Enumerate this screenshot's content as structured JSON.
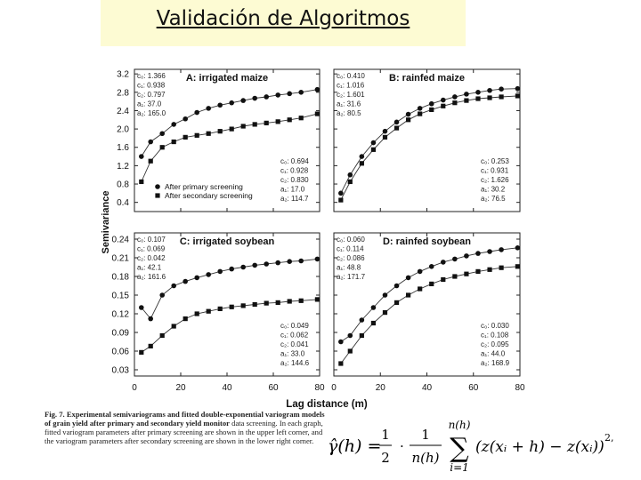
{
  "slide": {
    "title": "Validación de Algoritmos"
  },
  "figure": {
    "x_axis_label": "Lag distance (m)",
    "y_axis_label": "Semivariance",
    "caption_bold": "Fig. 7. Experimental semivariograms and fitted double-exponential variogram models of grain yield after primary and secondary yield monitor",
    "caption_rest": "data screening. In each graph, fitted variogram parameters after primary screening are shown in the upper left corner, and the variogram parameters after secondary screening are shown in the lower right corner."
  },
  "formula": {
    "lhs": "γ̂(h) =",
    "half_num": "1",
    "half_den": "2",
    "n_num": "1",
    "n_den": "n(h)",
    "sum_top": "n(h)",
    "sum_bottom": "i=1",
    "sum_symbol": "∑",
    "body": "(z(xᵢ + h) − z(xᵢ))",
    "power": "2,"
  },
  "chart_data": [
    {
      "id": "A",
      "type": "scatter",
      "title": "A: irrigated maize",
      "xlim": [
        0,
        80
      ],
      "ylim": [
        0.2,
        3.3
      ],
      "xticks": [
        "0",
        "20",
        "40",
        "60",
        "80"
      ],
      "yticks": [
        "0.4",
        "0.8",
        "1.2",
        "1.6",
        "2.0",
        "2.4",
        "2.8",
        "3.2"
      ],
      "params_upper": [
        "c₀: 1.366",
        "c₁: 0.938",
        "c₂: 0.797",
        "a₁: 37.0",
        "a₂: 165.0"
      ],
      "params_lower": [
        "c₀: 0.694",
        "c₁: 0.928",
        "c₂: 0.830",
        "a₁: 17.0",
        "a₂: 114.7"
      ],
      "legend": [
        "After primary screening",
        "After secondary screening"
      ],
      "series": [
        {
          "name": "After primary screening",
          "marker": "circle",
          "x": [
            3,
            7,
            12,
            17,
            22,
            27,
            32,
            37,
            42,
            47,
            52,
            57,
            62,
            67,
            72,
            79
          ],
          "y": [
            1.4,
            1.72,
            1.9,
            2.1,
            2.22,
            2.36,
            2.45,
            2.52,
            2.57,
            2.62,
            2.67,
            2.7,
            2.74,
            2.77,
            2.8,
            2.86
          ]
        },
        {
          "name": "After secondary screening",
          "marker": "square",
          "x": [
            3,
            7,
            12,
            17,
            22,
            27,
            32,
            37,
            42,
            47,
            52,
            57,
            62,
            67,
            72,
            79
          ],
          "y": [
            0.85,
            1.3,
            1.6,
            1.72,
            1.82,
            1.86,
            1.9,
            1.95,
            2.0,
            2.06,
            2.1,
            2.13,
            2.16,
            2.2,
            2.24,
            2.33
          ]
        }
      ]
    },
    {
      "id": "B",
      "type": "scatter",
      "title": "B: rainfed maize",
      "xlim": [
        0,
        80
      ],
      "ylim": [
        0.2,
        3.3
      ],
      "xticks": [
        "0",
        "20",
        "40",
        "60",
        "80"
      ],
      "yticks": [
        "0.4",
        "0.8",
        "1.2",
        "1.6",
        "2.0",
        "2.4",
        "2.8",
        "3.2"
      ],
      "params_upper": [
        "c₀: 0.410",
        "c₁: 1.016",
        "c₂: 1.601",
        "a₁: 31.6",
        "a₂: 80.5"
      ],
      "params_lower": [
        "c₀: 0.253",
        "c₁: 0.931",
        "c₂: 1.626",
        "a₁: 30.2",
        "a₂: 76.5"
      ],
      "series": [
        {
          "name": "After primary screening",
          "marker": "circle",
          "x": [
            3,
            7,
            12,
            17,
            22,
            27,
            32,
            37,
            42,
            47,
            52,
            57,
            62,
            67,
            72,
            79
          ],
          "y": [
            0.6,
            1.0,
            1.4,
            1.7,
            1.95,
            2.15,
            2.32,
            2.45,
            2.55,
            2.63,
            2.7,
            2.76,
            2.8,
            2.84,
            2.87,
            2.88
          ]
        },
        {
          "name": "After secondary screening",
          "marker": "square",
          "x": [
            3,
            7,
            12,
            17,
            22,
            27,
            32,
            37,
            42,
            47,
            52,
            57,
            62,
            67,
            72,
            79
          ],
          "y": [
            0.45,
            0.85,
            1.25,
            1.55,
            1.82,
            2.02,
            2.2,
            2.33,
            2.42,
            2.5,
            2.57,
            2.62,
            2.66,
            2.68,
            2.7,
            2.72
          ]
        }
      ]
    },
    {
      "id": "C",
      "type": "scatter",
      "title": "C: irrigated soybean",
      "xlim": [
        0,
        80
      ],
      "ylim": [
        0.02,
        0.25
      ],
      "xticks": [
        "0",
        "20",
        "40",
        "60",
        "80"
      ],
      "yticks": [
        "0.03",
        "0.06",
        "0.09",
        "0.12",
        "0.15",
        "0.18",
        "0.21",
        "0.24"
      ],
      "params_upper": [
        "c₀: 0.107",
        "c₁: 0.069",
        "c₂: 0.042",
        "a₁: 42.1",
        "a₂: 161.6"
      ],
      "params_lower": [
        "c₀: 0.049",
        "c₁: 0.062",
        "c₂: 0.041",
        "a₁: 33.0",
        "a₂: 144.6"
      ],
      "series": [
        {
          "name": "After primary screening",
          "marker": "circle",
          "x": [
            3,
            7,
            12,
            17,
            22,
            27,
            32,
            37,
            42,
            47,
            52,
            57,
            62,
            67,
            72,
            79
          ],
          "y": [
            0.13,
            0.112,
            0.15,
            0.165,
            0.172,
            0.178,
            0.183,
            0.188,
            0.192,
            0.195,
            0.198,
            0.2,
            0.202,
            0.204,
            0.205,
            0.208
          ]
        },
        {
          "name": "After secondary screening",
          "marker": "square",
          "x": [
            3,
            7,
            12,
            17,
            22,
            27,
            32,
            37,
            42,
            47,
            52,
            57,
            62,
            67,
            72,
            79
          ],
          "y": [
            0.058,
            0.068,
            0.085,
            0.1,
            0.112,
            0.12,
            0.124,
            0.128,
            0.131,
            0.133,
            0.135,
            0.137,
            0.138,
            0.14,
            0.141,
            0.143
          ]
        }
      ]
    },
    {
      "id": "D",
      "type": "scatter",
      "title": "D: rainfed soybean",
      "xlim": [
        0,
        80
      ],
      "ylim": [
        0.02,
        0.25
      ],
      "xticks": [
        "0",
        "20",
        "40",
        "60",
        "80"
      ],
      "yticks": [
        "0.03",
        "0.06",
        "0.09",
        "0.12",
        "0.15",
        "0.18",
        "0.21",
        "0.24"
      ],
      "params_upper": [
        "c₀: 0.060",
        "c₁: 0.114",
        "c₂: 0.086",
        "a₁: 48.8",
        "a₂: 171.7"
      ],
      "params_lower": [
        "c₀: 0.030",
        "c₁: 0.108",
        "c₂: 0.095",
        "a₁: 44.0",
        "a₂: 168.9"
      ],
      "series": [
        {
          "name": "After primary screening",
          "marker": "circle",
          "x": [
            3,
            7,
            12,
            17,
            22,
            27,
            32,
            37,
            42,
            47,
            52,
            57,
            62,
            67,
            72,
            79
          ],
          "y": [
            0.075,
            0.085,
            0.11,
            0.13,
            0.15,
            0.165,
            0.178,
            0.188,
            0.196,
            0.203,
            0.208,
            0.213,
            0.217,
            0.22,
            0.223,
            0.226
          ]
        },
        {
          "name": "After secondary screening",
          "marker": "square",
          "x": [
            3,
            7,
            12,
            17,
            22,
            27,
            32,
            37,
            42,
            47,
            52,
            57,
            62,
            67,
            72,
            79
          ],
          "y": [
            0.04,
            0.06,
            0.085,
            0.105,
            0.122,
            0.138,
            0.15,
            0.16,
            0.168,
            0.175,
            0.18,
            0.184,
            0.188,
            0.191,
            0.194,
            0.196
          ]
        }
      ]
    }
  ]
}
